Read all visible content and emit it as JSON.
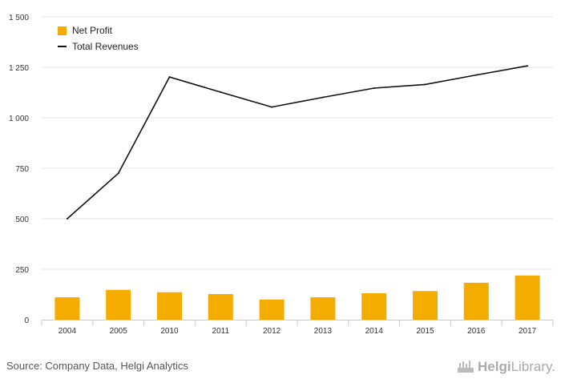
{
  "chart_data": {
    "type": "bar",
    "categories": [
      "2004",
      "2005",
      "2010",
      "2011",
      "2012",
      "2013",
      "2014",
      "2015",
      "2016",
      "2017"
    ],
    "series": [
      {
        "name": "Net Profit",
        "type": "bar",
        "color": "#f5ac00",
        "values": [
          111,
          148,
          136,
          127,
          100,
          111,
          131,
          142,
          183,
          219
        ]
      },
      {
        "name": "Total Revenues",
        "type": "line",
        "color": "#111111",
        "values": [
          500,
          725,
          1202,
          1127,
          1053,
          1101,
          1147,
          1165,
          1212,
          1257
        ]
      }
    ],
    "ylim": [
      0,
      1500
    ],
    "yticks": [
      0,
      250,
      500,
      750,
      1000,
      1250,
      1500
    ],
    "ytick_labels": [
      "0",
      "250",
      "500",
      "750",
      "1 000",
      "1 250",
      "1 500"
    ],
    "grid": true,
    "legend_position": "top-left",
    "xlabel": "",
    "ylabel": ""
  },
  "footer": {
    "source": "Source: Company Data, Helgi Analytics",
    "brand_prefix": "Helgi",
    "brand_suffix": "Library."
  }
}
